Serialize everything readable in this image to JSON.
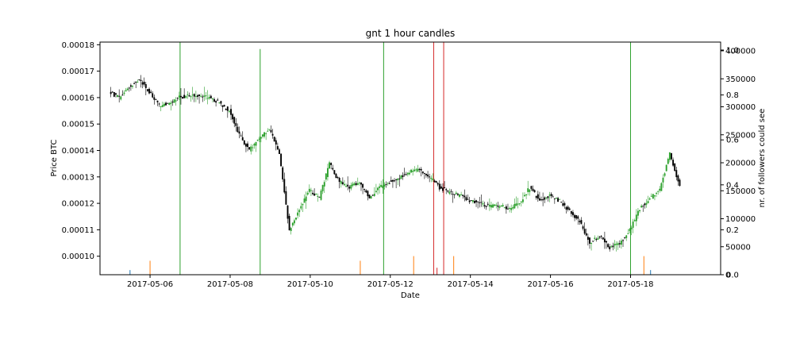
{
  "chart_data": {
    "type": "candlestick",
    "title": "gnt 1 hour candles",
    "xlabel": "Date",
    "ylabel": "Price BTC",
    "ylabel_right": "nr. of followers could see",
    "x_tick_labels": [
      "2017-05-06",
      "2017-05-08",
      "2017-05-10",
      "2017-05-12",
      "2017-05-14",
      "2017-05-16",
      "2017-05-18"
    ],
    "xlim_days": [
      "2017-05-04T18:00",
      "2017-05-20T06:00"
    ],
    "ylim": [
      9.3e-05,
      0.000181
    ],
    "y_ticks": [
      "0.00010",
      "0.00011",
      "0.00012",
      "0.00013",
      "0.00014",
      "0.00015",
      "0.00016",
      "0.00017",
      "0.00018"
    ],
    "right_axis_followers": {
      "ylim": [
        0,
        400000
      ],
      "ticks": [
        "0",
        "50000",
        "100000",
        "150000",
        "200000",
        "250000",
        "300000",
        "350000",
        "400000"
      ]
    },
    "right_axis_fraction": {
      "ylim": [
        0,
        1.0
      ],
      "ticks": [
        "0.0",
        "0.2",
        "0.4",
        "0.6",
        "0.8",
        "1.0"
      ]
    },
    "price_path": [
      [
        "2017-05-05T00:00",
        0.000162
      ],
      [
        "2017-05-05T06:00",
        0.00016
      ],
      [
        "2017-05-05T12:00",
        0.000164
      ],
      [
        "2017-05-05T18:00",
        0.000167
      ],
      [
        "2017-05-06T00:00",
        0.000162
      ],
      [
        "2017-05-06T06:00",
        0.000157
      ],
      [
        "2017-05-06T12:00",
        0.000158
      ],
      [
        "2017-05-06T18:00",
        0.00016
      ],
      [
        "2017-05-07T00:00",
        0.000161
      ],
      [
        "2017-05-07T06:00",
        0.000161
      ],
      [
        "2017-05-07T12:00",
        0.00016
      ],
      [
        "2017-05-07T18:00",
        0.000158
      ],
      [
        "2017-05-08T00:00",
        0.000155
      ],
      [
        "2017-05-08T06:00",
        0.000146
      ],
      [
        "2017-05-08T12:00",
        0.00014
      ],
      [
        "2017-05-08T18:00",
        0.000145
      ],
      [
        "2017-05-09T00:00",
        0.000148
      ],
      [
        "2017-05-09T06:00",
        0.000139
      ],
      [
        "2017-05-09T12:00",
        0.00011
      ],
      [
        "2017-05-09T18:00",
        0.000118
      ],
      [
        "2017-05-10T00:00",
        0.000125
      ],
      [
        "2017-05-10T06:00",
        0.000122
      ],
      [
        "2017-05-10T12:00",
        0.000135
      ],
      [
        "2017-05-10T18:00",
        0.000128
      ],
      [
        "2017-05-11T00:00",
        0.000126
      ],
      [
        "2017-05-11T06:00",
        0.000128
      ],
      [
        "2017-05-11T12:00",
        0.000122
      ],
      [
        "2017-05-11T18:00",
        0.000126
      ],
      [
        "2017-05-12T00:00",
        0.000128
      ],
      [
        "2017-05-12T06:00",
        0.00013
      ],
      [
        "2017-05-12T12:00",
        0.000132
      ],
      [
        "2017-05-12T18:00",
        0.000133
      ],
      [
        "2017-05-13T00:00",
        0.00013
      ],
      [
        "2017-05-13T06:00",
        0.000126
      ],
      [
        "2017-05-13T12:00",
        0.000124
      ],
      [
        "2017-05-13T18:00",
        0.000123
      ],
      [
        "2017-05-14T00:00",
        0.000121
      ],
      [
        "2017-05-14T06:00",
        0.00012
      ],
      [
        "2017-05-14T12:00",
        0.000119
      ],
      [
        "2017-05-14T18:00",
        0.000119
      ],
      [
        "2017-05-15T00:00",
        0.000118
      ],
      [
        "2017-05-15T06:00",
        0.00012
      ],
      [
        "2017-05-15T12:00",
        0.000126
      ],
      [
        "2017-05-15T18:00",
        0.000121
      ],
      [
        "2017-05-16T00:00",
        0.000123
      ],
      [
        "2017-05-16T06:00",
        0.000121
      ],
      [
        "2017-05-16T12:00",
        0.000117
      ],
      [
        "2017-05-16T18:00",
        0.000113
      ],
      [
        "2017-05-17T00:00",
        0.000105
      ],
      [
        "2017-05-17T06:00",
        0.000108
      ],
      [
        "2017-05-17T12:00",
        0.000103
      ],
      [
        "2017-05-17T18:00",
        0.000105
      ],
      [
        "2017-05-18T00:00",
        0.00011
      ],
      [
        "2017-05-18T06:00",
        0.000118
      ],
      [
        "2017-05-18T12:00",
        0.000122
      ],
      [
        "2017-05-18T18:00",
        0.000125
      ],
      [
        "2017-05-19T00:00",
        0.000139
      ],
      [
        "2017-05-19T06:00",
        0.000126
      ]
    ],
    "follower_spikes": [
      {
        "x": "2017-05-06T18:00",
        "value": 1.0,
        "color": "#2ca02c"
      },
      {
        "x": "2017-05-08T18:00",
        "value": 0.97,
        "color": "#2ca02c"
      },
      {
        "x": "2017-05-11T20:00",
        "value": 1.0,
        "color": "#2ca02c"
      },
      {
        "x": "2017-05-13T02:00",
        "value": 1.0,
        "color": "#d62728"
      },
      {
        "x": "2017-05-13T08:00",
        "value": 1.0,
        "color": "#d62728"
      },
      {
        "x": "2017-05-18T00:00",
        "value": 1.0,
        "color": "#2ca02c"
      }
    ],
    "small_bars": [
      {
        "x": "2017-05-05T12:00",
        "value": 0.02,
        "color": "#1f77b4"
      },
      {
        "x": "2017-05-06T00:00",
        "value": 0.06,
        "color": "#ff7f0e"
      },
      {
        "x": "2017-05-11T06:00",
        "value": 0.06,
        "color": "#ff7f0e"
      },
      {
        "x": "2017-05-12T14:00",
        "value": 0.08,
        "color": "#ff7f0e"
      },
      {
        "x": "2017-05-13T04:00",
        "value": 0.03,
        "color": "#d62728"
      },
      {
        "x": "2017-05-13T14:00",
        "value": 0.08,
        "color": "#ff7f0e"
      },
      {
        "x": "2017-05-18T08:00",
        "value": 0.08,
        "color": "#ff7f0e"
      },
      {
        "x": "2017-05-18T12:00",
        "value": 0.02,
        "color": "#1f77b4"
      }
    ],
    "colors": {
      "up": "#2ca02c",
      "down": "#000000",
      "axes": "#000000"
    },
    "grid": false
  }
}
